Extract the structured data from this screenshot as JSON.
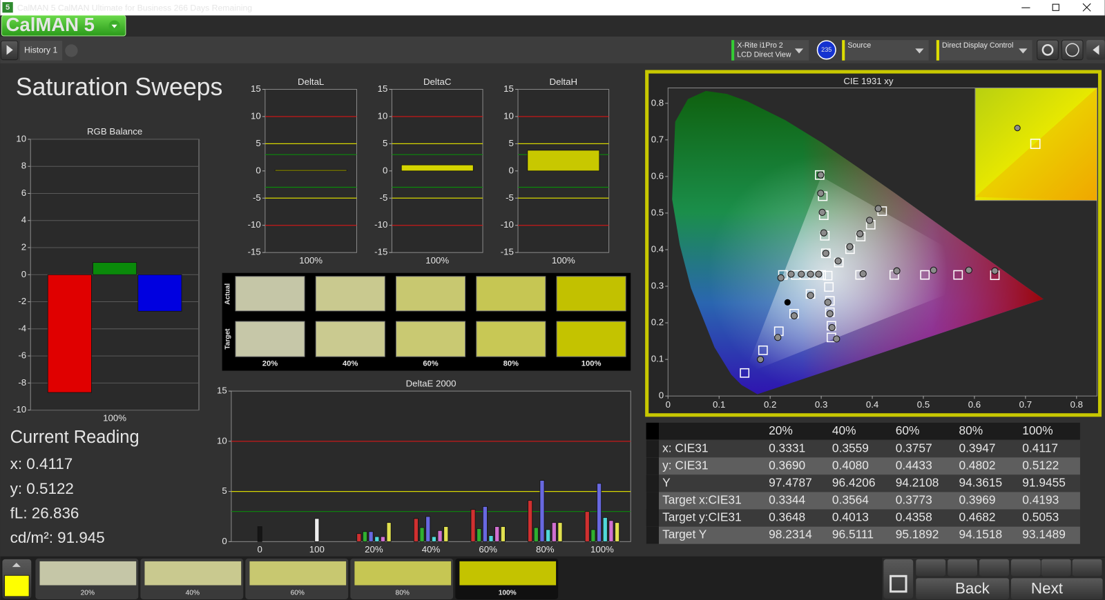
{
  "window": {
    "icon_label": "5",
    "title": "CalMAN 5 CalMAN Ultimate for Business 266 Days Remaining",
    "logo": "CalMAN 5"
  },
  "toolbar": {
    "tab": "History 1",
    "meter_name": "X-Rite i1Pro 2",
    "meter_mode": "LCD Direct View",
    "badge": "235",
    "source": "Source",
    "display_control": "Direct Display Control"
  },
  "page_title": "Saturation Sweeps",
  "rgb_balance": {
    "type": "bar",
    "title": "RGB Balance",
    "categories": [
      "100%"
    ],
    "series": [
      {
        "color": "#e00000",
        "values": [
          -8.7
        ]
      },
      {
        "color": "#0a8a0a",
        "values": [
          0.9
        ]
      },
      {
        "color": "#0000e0",
        "values": [
          -2.7
        ]
      }
    ],
    "ylim": [
      -10,
      10
    ],
    "yticks": [
      -10,
      -8,
      -6,
      -4,
      -2,
      0,
      2,
      4,
      6,
      8,
      10
    ],
    "grid": true
  },
  "delta_charts": [
    {
      "type": "bar",
      "title": "DeltaL",
      "categories": [
        "100%"
      ],
      "values": [
        0.2
      ],
      "color": "#d4d400",
      "ylim": [
        -15,
        15
      ],
      "yticks": [
        -15,
        -10,
        -5,
        0,
        5,
        10,
        15
      ],
      "reference_lines": [
        {
          "value": 10,
          "color": "#c81818"
        },
        {
          "value": -10,
          "color": "#c81818"
        },
        {
          "value": 5,
          "color": "#d8d800"
        },
        {
          "value": -5,
          "color": "#d8d800"
        },
        {
          "value": 3,
          "color": "#0a8a0a"
        },
        {
          "value": -3,
          "color": "#0a8a0a"
        }
      ]
    },
    {
      "type": "bar",
      "title": "DeltaC",
      "categories": [
        "100%"
      ],
      "values": [
        1.1
      ],
      "color": "#d4d400",
      "ylim": [
        -15,
        15
      ],
      "yticks": [
        -15,
        -10,
        -5,
        0,
        5,
        10,
        15
      ],
      "reference_lines": [
        {
          "value": 10,
          "color": "#c81818"
        },
        {
          "value": -10,
          "color": "#c81818"
        },
        {
          "value": 5,
          "color": "#d8d800"
        },
        {
          "value": -5,
          "color": "#d8d800"
        },
        {
          "value": 3,
          "color": "#0a8a0a"
        },
        {
          "value": -3,
          "color": "#0a8a0a"
        }
      ]
    },
    {
      "type": "bar",
      "title": "DeltaH",
      "categories": [
        "100%"
      ],
      "values": [
        3.8
      ],
      "color": "#c8c800",
      "ylim": [
        -15,
        15
      ],
      "yticks": [
        -15,
        -10,
        -5,
        0,
        5,
        10,
        15
      ],
      "reference_lines": [
        {
          "value": 10,
          "color": "#c81818"
        },
        {
          "value": -10,
          "color": "#c81818"
        },
        {
          "value": 5,
          "color": "#d8d800"
        },
        {
          "value": -5,
          "color": "#d8d800"
        },
        {
          "value": 3,
          "color": "#0a8a0a"
        },
        {
          "value": -3,
          "color": "#0a8a0a"
        }
      ]
    }
  ],
  "swatches": {
    "row_labels": [
      "Actual",
      "Target"
    ],
    "labels": [
      "20%",
      "40%",
      "60%",
      "80%",
      "100%"
    ],
    "actual_colors": [
      "#c5c6a7",
      "#c9c98f",
      "#c8c870",
      "#c6c653",
      "#c2c100"
    ],
    "target_colors": [
      "#c6c7a8",
      "#caca90",
      "#c9c972",
      "#c8c855",
      "#c4c300"
    ]
  },
  "delta_e": {
    "type": "bar",
    "title": "DeltaE 2000",
    "categories": [
      "0",
      "100",
      "20%",
      "40%",
      "60%",
      "80%",
      "100%"
    ],
    "series": [
      {
        "color": "#151515",
        "values": [
          1.5,
          null,
          null,
          null,
          null,
          null,
          null
        ]
      },
      {
        "color": "#eeeeee",
        "values": [
          null,
          2.3,
          null,
          null,
          null,
          null,
          null
        ]
      },
      {
        "color": "#d03030",
        "values": [
          null,
          null,
          0.8,
          2.3,
          3.2,
          4.1,
          3.0
        ]
      },
      {
        "color": "#30b030",
        "values": [
          null,
          null,
          1.0,
          1.4,
          1.3,
          1.4,
          1.2
        ]
      },
      {
        "color": "#6868e0",
        "values": [
          null,
          null,
          1.0,
          2.5,
          3.5,
          6.1,
          5.8
        ]
      },
      {
        "color": "#50d8d8",
        "values": [
          null,
          null,
          0.5,
          0.5,
          0.6,
          1.2,
          2.4
        ]
      },
      {
        "color": "#d070d0",
        "values": [
          null,
          null,
          0.5,
          1.1,
          1.5,
          1.9,
          2.1
        ]
      },
      {
        "color": "#e0e050",
        "values": [
          null,
          null,
          1.9,
          1.5,
          1.5,
          1.9,
          1.9
        ]
      }
    ],
    "ylim": [
      0,
      15
    ],
    "yticks": [
      0,
      5,
      10,
      15
    ],
    "reference_lines": [
      {
        "value": 10,
        "color": "#c81818"
      },
      {
        "value": 5,
        "color": "#d8d800"
      },
      {
        "value": 3,
        "color": "#0a8a0a"
      }
    ]
  },
  "cie": {
    "type": "scatter",
    "title": "CIE 1931 xy",
    "xlim": [
      0,
      0.84
    ],
    "ylim": [
      0,
      0.842
    ],
    "xticks": [
      0,
      0.1,
      0.2,
      0.3,
      0.4,
      0.5,
      0.6,
      0.7,
      0.8
    ],
    "yticks": [
      0,
      0.1,
      0.2,
      0.3,
      0.4,
      0.5,
      0.6,
      0.7,
      0.8
    ],
    "gamut": {
      "x": [
        0.64,
        0.3,
        0.15
      ],
      "y": [
        0.33,
        0.6,
        0.06
      ]
    },
    "series": [
      {
        "marker": "square",
        "color": "#ffffff",
        "x": [
          0.3127,
          0.376,
          0.443,
          0.503,
          0.568,
          0.64,
          0.309,
          0.307,
          0.305,
          0.303,
          0.297,
          0.279,
          0.247,
          0.217,
          0.186,
          0.15,
          0.3,
          0.285,
          0.268,
          0.25,
          0.225,
          0.315,
          0.317,
          0.317,
          0.32,
          0.32,
          0.3344,
          0.3564,
          0.3773,
          0.3969,
          0.4193
        ],
        "y": [
          0.329,
          0.331,
          0.331,
          0.331,
          0.331,
          0.33,
          0.39,
          0.438,
          0.494,
          0.546,
          0.604,
          0.279,
          0.225,
          0.177,
          0.125,
          0.063,
          0.331,
          0.331,
          0.331,
          0.331,
          0.331,
          0.298,
          0.26,
          0.229,
          0.192,
          0.16,
          0.3648,
          0.4013,
          0.4358,
          0.4682,
          0.5053
        ]
      },
      {
        "marker": "circle",
        "color": "#8c8c8c",
        "x": [
          0.382,
          0.448,
          0.52,
          0.589,
          0.64,
          0.309,
          0.305,
          0.302,
          0.299,
          0.299,
          0.279,
          0.247,
          0.215,
          0.181,
          0.295,
          0.279,
          0.261,
          0.241,
          0.221,
          0.313,
          0.317,
          0.321,
          0.33,
          0.3331,
          0.3559,
          0.3757,
          0.3947,
          0.4117
        ],
        "y": [
          0.334,
          0.342,
          0.344,
          0.344,
          0.342,
          0.39,
          0.446,
          0.502,
          0.554,
          0.604,
          0.275,
          0.219,
          0.16,
          0.1,
          0.333,
          0.333,
          0.333,
          0.333,
          0.323,
          0.256,
          0.225,
          0.187,
          0.156,
          0.369,
          0.408,
          0.4433,
          0.4802,
          0.5122
        ]
      },
      {
        "marker": "dot",
        "color": "#000000",
        "x": [
          0.234
        ],
        "y": [
          0.256
        ]
      }
    ]
  },
  "readings_table": {
    "header": [
      "20%",
      "40%",
      "60%",
      "80%",
      "100%"
    ],
    "rows": [
      {
        "label": "x: CIE31",
        "values": [
          "0.3331",
          "0.3559",
          "0.3757",
          "0.3947",
          "0.4117"
        ]
      },
      {
        "label": "y: CIE31",
        "values": [
          "0.3690",
          "0.4080",
          "0.4433",
          "0.4802",
          "0.5122"
        ]
      },
      {
        "label": "Y",
        "values": [
          "97.4787",
          "96.4206",
          "94.2108",
          "94.3615",
          "91.9455"
        ]
      },
      {
        "label": "Target x:CIE31",
        "values": [
          "0.3344",
          "0.3564",
          "0.3773",
          "0.3969",
          "0.4193"
        ]
      },
      {
        "label": "Target y:CIE31",
        "values": [
          "0.3648",
          "0.4013",
          "0.4358",
          "0.4682",
          "0.5053"
        ]
      },
      {
        "label": "Target Y",
        "values": [
          "98.2314",
          "96.5111",
          "95.1892",
          "94.1518",
          "93.1489"
        ]
      }
    ]
  },
  "current_reading": {
    "title": "Current Reading",
    "lines": [
      "x: 0.4117",
      "y: 0.5122",
      "fL: 26.836",
      "cd/m²: 91.945"
    ]
  },
  "bottom_bar": {
    "current_color": "#ffff00",
    "labels": [
      "20%",
      "40%",
      "60%",
      "80%",
      "100%"
    ],
    "colors": [
      "#c5c6a7",
      "#c9c98f",
      "#c8c870",
      "#c6c653",
      "#c4c300"
    ],
    "back": "Back",
    "next": "Next"
  }
}
